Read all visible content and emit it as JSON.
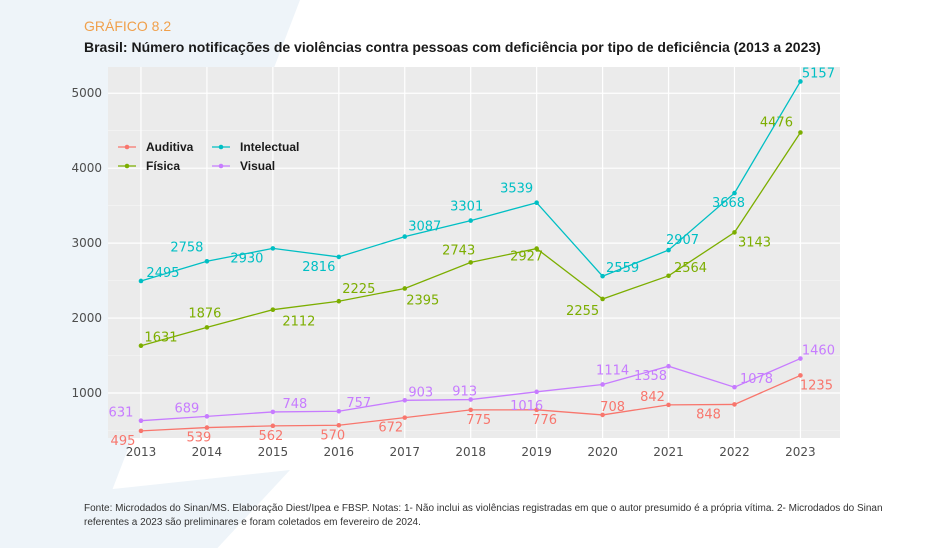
{
  "header": {
    "kicker": "GRÁFICO 8.2",
    "title": "Brasil: Número notificações de violências contra pessoas com deficiência por tipo de deficiência (2013 a 2023)"
  },
  "footnote": "Fonte: Microdados do Sinan/MS. Elaboração Diest/Ipea e FBSP. Notas: 1- Não inclui as violências registradas em que o autor presumido é a própria vítima. 2- Microdados do Sinan referentes a 2023 são preliminares e foram coletados em fevereiro de 2024.",
  "colors": {
    "kicker": "#f0a04b",
    "panel": "#ebebeb",
    "grid": "#ffffff"
  },
  "chart_data": {
    "type": "line",
    "title": "Brasil: Número notificações de violências contra pessoas com deficiência por tipo de deficiência (2013 a 2023)",
    "x": [
      2013,
      2014,
      2015,
      2016,
      2017,
      2018,
      2019,
      2020,
      2021,
      2022,
      2023
    ],
    "xlabel": "",
    "ylabel": "",
    "ylim": [
      400,
      5350
    ],
    "yticks": [
      1000,
      2000,
      3000,
      4000,
      5000
    ],
    "grid": true,
    "legend_position": "top-left",
    "data_labels": true,
    "series": [
      {
        "name": "Auditiva",
        "color": "#f8766d",
        "values": [
          495,
          539,
          562,
          570,
          672,
          775,
          776,
          708,
          842,
          848,
          1235
        ]
      },
      {
        "name": "Física",
        "color": "#7cae00",
        "values": [
          1631,
          1876,
          2112,
          2225,
          2395,
          2743,
          2927,
          2255,
          2564,
          3143,
          4476
        ]
      },
      {
        "name": "Intelectual",
        "color": "#00bfc4",
        "values": [
          2495,
          2758,
          2930,
          2816,
          3087,
          3301,
          3539,
          2559,
          2907,
          3668,
          5157
        ]
      },
      {
        "name": "Visual",
        "color": "#c77cff",
        "values": [
          631,
          689,
          748,
          757,
          903,
          913,
          1016,
          1114,
          1358,
          1078,
          1460
        ]
      }
    ]
  }
}
